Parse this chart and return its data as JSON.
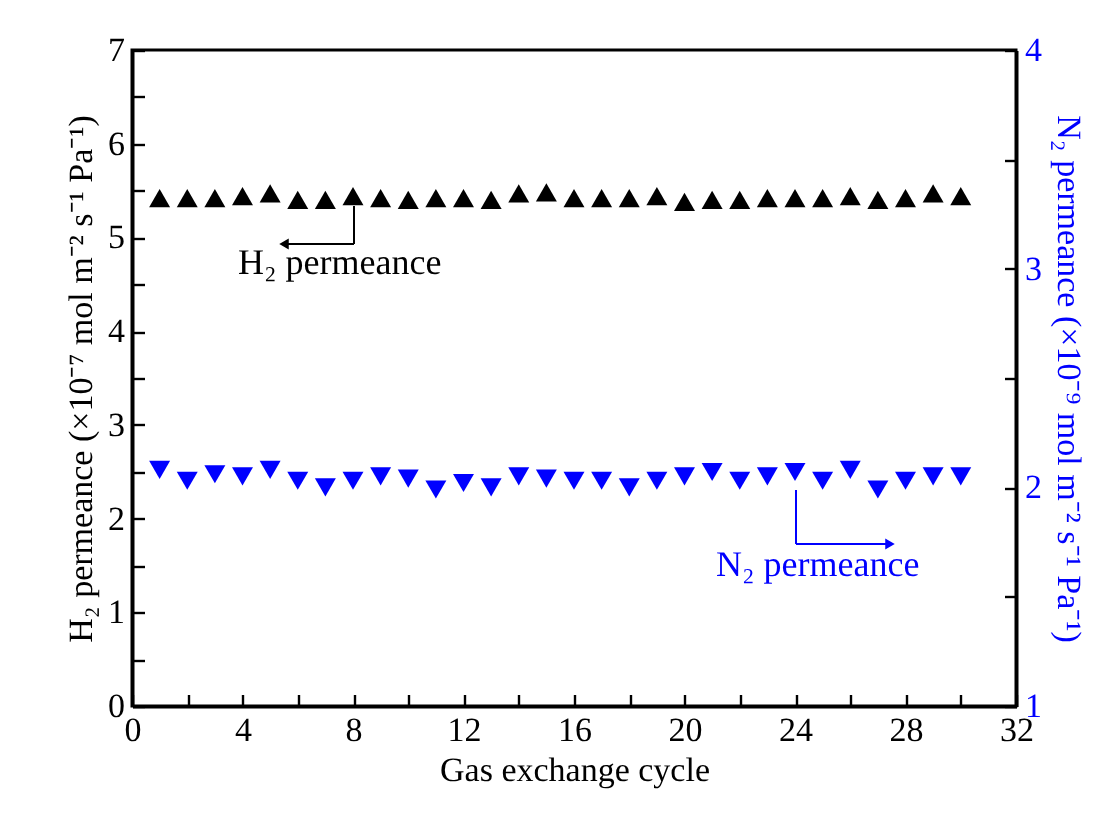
{
  "chart_data": {
    "type": "scatter",
    "xlabel": "Gas exchange cycle",
    "ylabel": "H₂ permeance (×10⁻⁷ mol m⁻² s⁻¹ Pa⁻¹)",
    "y2label": "N₂ permeance (×10⁻⁹ mol m⁻² s⁻¹ Pa⁻¹)",
    "x": [
      1,
      2,
      3,
      4,
      5,
      6,
      7,
      8,
      9,
      10,
      11,
      12,
      13,
      14,
      15,
      16,
      17,
      18,
      19,
      20,
      21,
      22,
      23,
      24,
      25,
      26,
      27,
      28,
      29,
      30
    ],
    "series": [
      {
        "name": "H₂ permeance",
        "color": "#000000",
        "marker": "triangle",
        "values": [
          5.42,
          5.42,
          5.42,
          5.44,
          5.47,
          5.4,
          5.4,
          5.44,
          5.42,
          5.4,
          5.42,
          5.42,
          5.4,
          5.47,
          5.48,
          5.42,
          5.42,
          5.42,
          5.44,
          5.38,
          5.4,
          5.4,
          5.42,
          5.42,
          5.42,
          5.44,
          5.4,
          5.42,
          5.47,
          5.44
        ]
      },
      {
        "name": "N₂ permeance",
        "color": "#0000ff",
        "marker": "triangle-down",
        "axis": "y2",
        "values": [
          2.08,
          2.03,
          2.06,
          2.05,
          2.08,
          2.03,
          2.0,
          2.03,
          2.05,
          2.04,
          1.99,
          2.02,
          2.0,
          2.05,
          2.04,
          2.03,
          2.03,
          2.0,
          2.03,
          2.05,
          2.07,
          2.03,
          2.05,
          2.07,
          2.03,
          2.08,
          1.99,
          2.03,
          2.05,
          2.05
        ]
      }
    ],
    "xlim": [
      0,
      32
    ],
    "xticks": [
      0,
      {
        "value": 2,
        "label": null
      },
      4,
      {
        "value": 6,
        "label": null
      },
      8,
      {
        "value": 10,
        "label": null
      },
      12,
      {
        "value": 14,
        "label": null
      },
      16,
      {
        "value": 18,
        "label": null
      },
      20,
      {
        "value": 22,
        "label": null
      },
      24,
      {
        "value": 26,
        "label": null
      },
      28,
      {
        "value": 30,
        "label": null
      },
      32
    ],
    "ylim": [
      0,
      7
    ],
    "yticks": [
      0,
      {
        "value": 0.5,
        "label": null
      },
      1,
      {
        "value": 1.5,
        "label": null
      },
      2,
      {
        "value": 2.5,
        "label": null
      },
      3,
      {
        "value": 3.5,
        "label": null
      },
      4,
      {
        "value": 4.5,
        "label": null
      },
      5,
      {
        "value": 5.5,
        "label": null
      },
      6,
      {
        "value": 6.5,
        "label": null
      },
      7
    ],
    "y2lim": [
      1,
      4
    ],
    "y2ticks": [
      1,
      {
        "value": 1.5,
        "label": null
      },
      2,
      {
        "value": 2.5,
        "label": null
      },
      3,
      {
        "value": 3.5,
        "label": null
      },
      4
    ],
    "grid": false,
    "legend": "center"
  }
}
